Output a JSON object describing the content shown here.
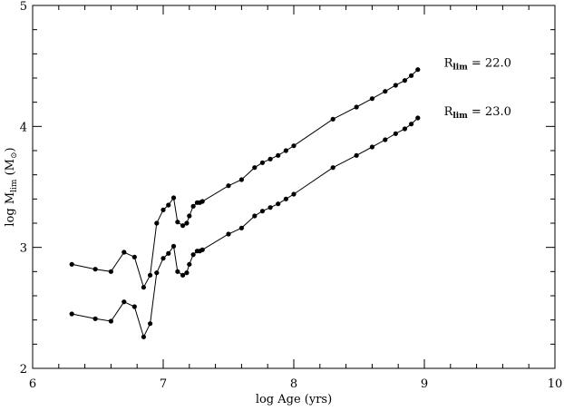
{
  "chart_data": {
    "type": "line",
    "xlabel": "log Age (yrs)",
    "ylabel": {
      "prefix": "log M",
      "sub": "lim",
      "unit_open": " (M",
      "unit_sub": "⊙",
      "unit_close": ")"
    },
    "xlim": [
      6,
      10
    ],
    "ylim": [
      2,
      5
    ],
    "xticks": [
      6,
      7,
      8,
      9,
      10
    ],
    "yticks": [
      2,
      3,
      4,
      5
    ],
    "x_minor_step": 0.2,
    "y_minor_step": 0.2,
    "grid": false,
    "series": [
      {
        "annotation": {
          "prefix": "R",
          "sub": "lim",
          "rest": " = 22.0",
          "x": 9.15,
          "y": 4.53
        },
        "x": [
          6.3,
          6.48,
          6.6,
          6.7,
          6.78,
          6.85,
          6.9,
          6.95,
          7.0,
          7.04,
          7.08,
          7.11,
          7.15,
          7.18,
          7.2,
          7.23,
          7.26,
          7.28,
          7.3,
          7.5,
          7.6,
          7.7,
          7.76,
          7.82,
          7.88,
          7.94,
          8.0,
          8.3,
          8.48,
          8.6,
          8.7,
          8.78,
          8.85,
          8.9,
          8.95
        ],
        "y": [
          2.86,
          2.82,
          2.8,
          2.96,
          2.92,
          2.67,
          2.77,
          3.2,
          3.31,
          3.35,
          3.41,
          3.21,
          3.18,
          3.2,
          3.26,
          3.34,
          3.37,
          3.37,
          3.38,
          3.51,
          3.56,
          3.66,
          3.7,
          3.73,
          3.76,
          3.8,
          3.84,
          4.06,
          4.16,
          4.23,
          4.29,
          4.34,
          4.38,
          4.42,
          4.47
        ]
      },
      {
        "annotation": {
          "prefix": "R",
          "sub": "lim",
          "rest": " = 23.0",
          "x": 9.15,
          "y": 4.13
        },
        "x": [
          6.3,
          6.48,
          6.6,
          6.7,
          6.78,
          6.85,
          6.9,
          6.95,
          7.0,
          7.04,
          7.08,
          7.11,
          7.15,
          7.18,
          7.2,
          7.23,
          7.26,
          7.28,
          7.3,
          7.5,
          7.6,
          7.7,
          7.76,
          7.82,
          7.88,
          7.94,
          8.0,
          8.3,
          8.48,
          8.6,
          8.7,
          8.78,
          8.85,
          8.9,
          8.95
        ],
        "y": [
          2.45,
          2.41,
          2.39,
          2.55,
          2.51,
          2.26,
          2.37,
          2.79,
          2.91,
          2.95,
          3.01,
          2.8,
          2.77,
          2.79,
          2.86,
          2.94,
          2.97,
          2.97,
          2.98,
          3.11,
          3.16,
          3.26,
          3.3,
          3.33,
          3.36,
          3.4,
          3.44,
          3.66,
          3.76,
          3.83,
          3.89,
          3.94,
          3.98,
          4.02,
          4.07
        ]
      }
    ]
  }
}
